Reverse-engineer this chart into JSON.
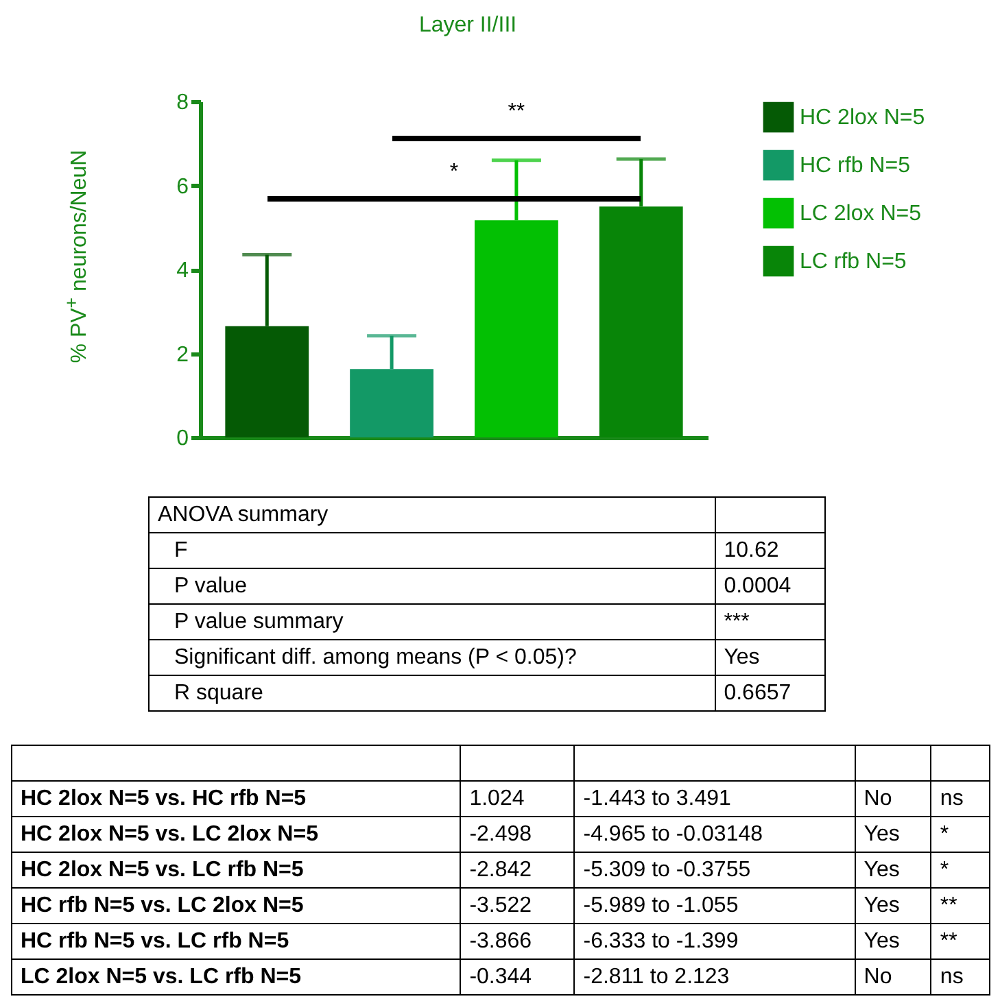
{
  "chart_data": [
    {
      "type": "bar",
      "title": "Layer II/III",
      "ylabel": "% PV$^{+}$ neurons/NeuN",
      "categories": [
        null,
        null,
        null,
        null
      ],
      "ylim": [
        0,
        8
      ],
      "yticks": [
        0,
        2,
        4,
        6,
        8
      ],
      "grid": false,
      "legend": "right",
      "tick_labels": "y",
      "series": [
        {
          "name": "HC 2lox N=5",
          "color": "#055a05",
          "values": [
            2.65,
            null,
            null,
            null
          ],
          "errors": [
            [
              2.65,
              4.35
            ],
            null,
            null,
            null
          ]
        },
        {
          "name": "HC rfb N=5",
          "color": "#139966",
          "values": [
            null,
            1.63,
            null,
            null
          ],
          "errors": [
            null,
            [
              1.63,
              2.42
            ],
            null,
            null
          ]
        },
        {
          "name": "LC 2lox N=5",
          "color": "#03c003",
          "values": [
            null,
            null,
            5.17,
            null
          ],
          "errors": [
            null,
            null,
            [
              5.17,
              6.6
            ],
            null
          ]
        },
        {
          "name": "LC rfb N=5",
          "color": "#088508",
          "values": [
            null,
            null,
            null,
            5.5
          ],
          "errors": [
            null,
            null,
            null,
            [
              5.5,
              6.63
            ]
          ]
        }
      ],
      "annotations": [
        "**",
        "*"
      ]
    },
    {
      "type": "other",
      "title": "ANOVA summary",
      "y_categories": [
        "F",
        "P value",
        "P value summary",
        "Significant diff. among means (P < 0.05)?",
        "R square"
      ],
      "cell_labels": [
        [
          "10.62"
        ],
        [
          "0.0004"
        ],
        [
          "***"
        ],
        [
          "Yes"
        ],
        [
          "0.6657"
        ]
      ]
    },
    {
      "type": "other",
      "y_categories": [
        "HC 2lox N=5 vs. HC rfb N=5",
        "HC 2lox N=5 vs. LC 2lox N=5",
        "HC 2lox N=5 vs. LC rfb N=5",
        "HC rfb N=5 vs. LC 2lox N=5",
        "HC rfb N=5 vs. LC rfb N=5",
        "LC 2lox N=5 vs. LC rfb N=5"
      ],
      "cell_labels": [
        [
          "1.024",
          "-1.443 to 3.491",
          "No",
          "ns"
        ],
        [
          "-2.498",
          "-4.965 to -0.03148",
          "Yes",
          "*"
        ],
        [
          "-2.842",
          "-5.309 to -0.3755",
          "Yes",
          "*"
        ],
        [
          "-3.522",
          "-5.989 to -1.055",
          "Yes",
          "**"
        ],
        [
          "-3.866",
          "-6.333 to -1.399",
          "Yes",
          "**"
        ],
        [
          "-0.344",
          "-2.811 to 2.123",
          "No",
          "ns"
        ]
      ]
    }
  ]
}
